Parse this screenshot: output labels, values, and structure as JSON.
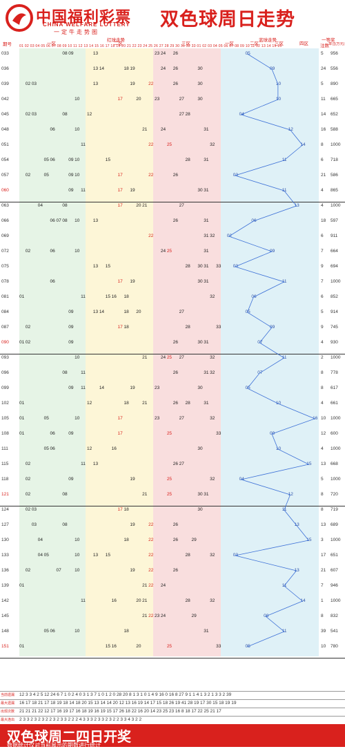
{
  "header": {
    "brand_cn": "中国福利彩票",
    "brand_en": "CHINA WELFARE LOTTERY",
    "brand_tag": "一定牛走势图",
    "title": "双色球周日走势"
  },
  "columns": {
    "issue": "期号",
    "red_trend": "红球走势",
    "zone1": "一区",
    "zone2": "二区",
    "zone3": "三区",
    "blue_trend": "蓝球走势",
    "blue_z1": "一区",
    "blue_z2": "二区",
    "blue_z3": "三区",
    "blue_z4": "四区",
    "first_prize": "一等奖",
    "count": "注数",
    "amount": "单注(万元)",
    "red_numbers": "01 02 03 04 05 06 07 08 09 10 11 12 13 14 15 16 17 18 19 20 21 22 23 24 25 26 27 28 29 30 31 32 33 01 02 03 04 05 06 07 08 09 10 11 12 13 14 15 16"
  },
  "rows": [
    {
      "issue": "033",
      "red": [
        "08",
        "09",
        "13",
        "23",
        "24",
        "26"
      ],
      "blue": "05",
      "count": "5",
      "amount": "956"
    },
    {
      "issue": "036",
      "red": [
        "13",
        "14",
        "18",
        "19",
        "24",
        "26",
        "30"
      ],
      "blue": "09",
      "count": "24",
      "amount": "556"
    },
    {
      "issue": "039",
      "red": [
        "02",
        "03",
        "13",
        "19",
        "22",
        "26",
        "30"
      ],
      "blue": "10",
      "count": "5",
      "amount": "890"
    },
    {
      "issue": "042",
      "red": [
        "10",
        "17",
        "20",
        "23",
        "27",
        "30"
      ],
      "blue": "10",
      "count": "11",
      "amount": "665"
    },
    {
      "issue": "045",
      "red": [
        "02",
        "03",
        "08",
        "12",
        "27",
        "28"
      ],
      "blue": "04",
      "count": "14",
      "amount": "652"
    },
    {
      "issue": "048",
      "red": [
        "06",
        "10",
        "21",
        "24",
        "31"
      ],
      "blue": "12",
      "count": "16",
      "amount": "588"
    },
    {
      "issue": "051",
      "red": [
        "11",
        "22",
        "25",
        "32"
      ],
      "blue": "14",
      "count": "8",
      "amount": "1000"
    },
    {
      "issue": "054",
      "red": [
        "05",
        "06",
        "09",
        "10",
        "15",
        "28",
        "31"
      ],
      "blue": "11",
      "count": "6",
      "amount": "718"
    },
    {
      "issue": "057",
      "red": [
        "02",
        "05",
        "09",
        "10",
        "17",
        "22",
        "26"
      ],
      "blue": "03",
      "count": "21",
      "amount": "586"
    },
    {
      "issue": "060",
      "red": [
        "09",
        "11",
        "17",
        "19",
        "30",
        "31"
      ],
      "blue": "11",
      "count": "4",
      "amount": "865"
    },
    {
      "issue": "063",
      "red": [
        "04",
        "08",
        "17",
        "20",
        "21",
        "27"
      ],
      "blue": "13",
      "count": "4",
      "amount": "1000"
    },
    {
      "issue": "066",
      "red": [
        "06",
        "07",
        "08",
        "10",
        "13",
        "26",
        "31"
      ],
      "blue": "06",
      "count": "18",
      "amount": "597"
    },
    {
      "issue": "069",
      "red": [
        "22",
        "31",
        "32"
      ],
      "blue": "02",
      "count": "6",
      "amount": "911"
    },
    {
      "issue": "072",
      "red": [
        "02",
        "06",
        "10",
        "24",
        "25",
        "31"
      ],
      "blue": "09",
      "count": "7",
      "amount": "664"
    },
    {
      "issue": "075",
      "red": [
        "13",
        "15",
        "28",
        "30",
        "31",
        "33"
      ],
      "blue": "03",
      "count": "9",
      "amount": "694"
    },
    {
      "issue": "078",
      "red": [
        "06",
        "17",
        "19",
        "30",
        "31"
      ],
      "blue": "11",
      "count": "7",
      "amount": "1000"
    },
    {
      "issue": "081",
      "red": [
        "01",
        "11",
        "15",
        "16",
        "18",
        "32"
      ],
      "blue": "06",
      "count": "6",
      "amount": "852"
    },
    {
      "issue": "084",
      "red": [
        "09",
        "13",
        "14",
        "18",
        "20",
        "27"
      ],
      "blue": "05",
      "count": "5",
      "amount": "914"
    },
    {
      "issue": "087",
      "red": [
        "02",
        "09",
        "17",
        "18",
        "28",
        "33"
      ],
      "blue": "09",
      "count": "9",
      "amount": "745"
    },
    {
      "issue": "090",
      "red": [
        "01",
        "02",
        "09",
        "26",
        "30",
        "31"
      ],
      "blue": "07",
      "count": "4",
      "amount": "930"
    },
    {
      "issue": "093",
      "red": [
        "10",
        "21",
        "24",
        "25",
        "27",
        "32"
      ],
      "blue": "11",
      "count": "2",
      "amount": "1000"
    },
    {
      "issue": "096",
      "red": [
        "08",
        "11",
        "26",
        "31",
        "32"
      ],
      "blue": "07",
      "count": "8",
      "amount": "778"
    },
    {
      "issue": "099",
      "red": [
        "09",
        "11",
        "14",
        "19",
        "23",
        "30"
      ],
      "blue": "05",
      "count": "8",
      "amount": "617"
    },
    {
      "issue": "102",
      "red": [
        "01",
        "12",
        "18",
        "21",
        "26",
        "28",
        "31"
      ],
      "blue": "10",
      "count": "4",
      "amount": "661"
    },
    {
      "issue": "105",
      "red": [
        "01",
        "05",
        "10",
        "17",
        "23",
        "27",
        "32"
      ],
      "blue": "16",
      "count": "10",
      "amount": "1000"
    },
    {
      "issue": "108",
      "red": [
        "01",
        "06",
        "09",
        "17",
        "25",
        "33"
      ],
      "blue": "09",
      "count": "12",
      "amount": "600"
    },
    {
      "issue": "111",
      "red": [
        "05",
        "06",
        "12",
        "16",
        "30"
      ],
      "blue": "10",
      "count": "4",
      "amount": "1000"
    },
    {
      "issue": "115",
      "red": [
        "02",
        "11",
        "13",
        "26",
        "27"
      ],
      "blue": "15",
      "count": "13",
      "amount": "668"
    },
    {
      "issue": "118",
      "red": [
        "02",
        "09",
        "19",
        "25",
        "32"
      ],
      "blue": "04",
      "count": "5",
      "amount": "1000"
    },
    {
      "issue": "121",
      "red": [
        "02",
        "08",
        "21",
        "25",
        "30",
        "31"
      ],
      "blue": "12",
      "count": "8",
      "amount": "720"
    },
    {
      "issue": "124",
      "red": [
        "02",
        "03",
        "17",
        "18",
        "30"
      ],
      "blue": "11",
      "count": "8",
      "amount": "719"
    },
    {
      "issue": "127",
      "red": [
        "03",
        "08",
        "19",
        "22",
        "26"
      ],
      "blue": "13",
      "count": "13",
      "amount": "689"
    },
    {
      "issue": "130",
      "red": [
        "04",
        "10",
        "18",
        "22",
        "26",
        "29"
      ],
      "blue": "15",
      "count": "3",
      "amount": "1000"
    },
    {
      "issue": "133",
      "red": [
        "04",
        "05",
        "10",
        "13",
        "15",
        "22",
        "28",
        "32"
      ],
      "blue": "03",
      "count": "17",
      "amount": "651"
    },
    {
      "issue": "136",
      "red": [
        "02",
        "07",
        "10",
        "19",
        "22",
        "26"
      ],
      "blue": "13",
      "count": "21",
      "amount": "607"
    },
    {
      "issue": "139",
      "red": [
        "01",
        "21",
        "22",
        "24"
      ],
      "blue": "11",
      "count": "7",
      "amount": "946"
    },
    {
      "issue": "142",
      "red": [
        "11",
        "16",
        "20",
        "21",
        "28",
        "32"
      ],
      "blue": "14",
      "count": "1",
      "amount": "1000"
    },
    {
      "issue": "145",
      "red": [
        "21",
        "22",
        "23",
        "24",
        "29"
      ],
      "blue": "08",
      "count": "8",
      "amount": "832"
    },
    {
      "issue": "148",
      "red": [
        "05",
        "06",
        "10",
        "18",
        "31"
      ],
      "blue": "11",
      "count": "39",
      "amount": "541"
    },
    {
      "issue": "151",
      "red": [
        "01",
        "15",
        "16",
        "20",
        "25",
        "33"
      ],
      "blue": "05",
      "count": "10",
      "amount": "780"
    }
  ],
  "stats": {
    "appear_label": "当前遗漏",
    "max_miss_label": "最大遗漏",
    "appear_count_label": "出现次数",
    "max_hit_label": "最大连出",
    "appear": "12 3 3 4 2 5 12 24 6 7 1 0 2 4 0 3 1 3 7 1 0 1 2 0 28 20 8 1 3 1 0 1 4 9 16 0 16 8 27 9 1 1 4 1 3 2 1 3 3 2 39",
    "max_miss": "16 17 18 21 17 18 19 18 14 18 20 15 13 14 14 20 12 13 16 19 14 17 15 18 26 19 41 28 19 17 30 15 18 19 19",
    "appear_count": "21 21 21 22 12 17 16 19 17 16 18 19 16 19 15 17 26 18 22 16 20 14 23 25 23 16 8 18 17 22 25 21 17",
    "max_hit": "2 3 3 2 3 2 3 2 2 3 2 3 3 2 2 2 4 3 3 3 2 3 3 2 3 2 2 3 3 4 3 2 2"
  },
  "footer": {
    "title": "双色球周二四日开奖",
    "note": "数据统计仅对当前展示的期数进行统计"
  },
  "colors": {
    "brand_red": "#d9211d",
    "zone1_bg": "#e6f4e6",
    "zone2_bg": "#fdf6d7",
    "zone3_bg": "#f9dede",
    "zone4_bg": "#dff1f7",
    "blue_line": "#3b6fd6"
  }
}
